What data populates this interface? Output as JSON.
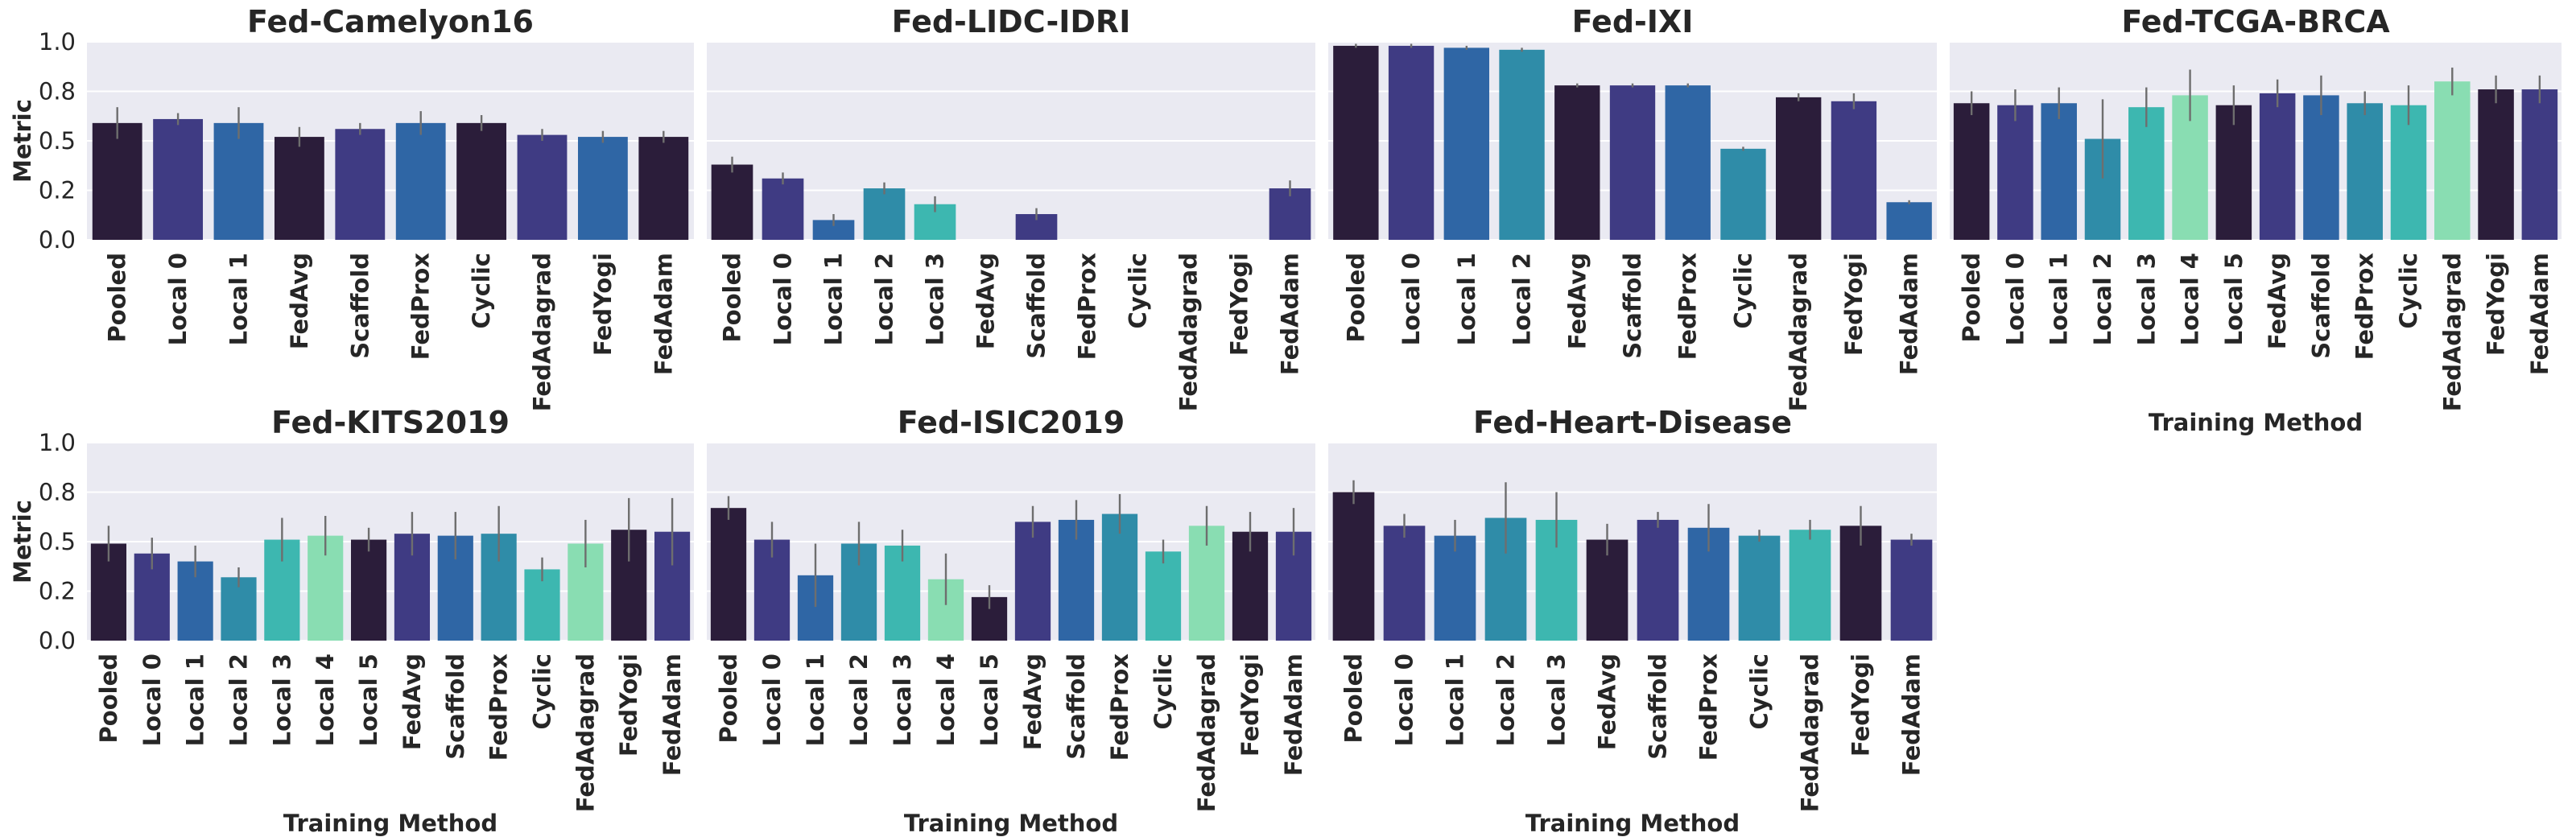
{
  "palette": [
    "#2b1d3a",
    "#3f3b83",
    "#2f66a5",
    "#2f8ca8",
    "#3db7b0",
    "#89ddb2"
  ],
  "chart_data": [
    {
      "type": "bar",
      "title": "Fed-Camelyon16",
      "xlabel": "",
      "ylabel": "Metric",
      "ylim": [
        0,
        1.0
      ],
      "yticks": [
        "0.0",
        "0.2",
        "0.5",
        "0.8",
        "1.0"
      ],
      "categories": [
        "Pooled",
        "Local 0",
        "Local 1",
        "FedAvg",
        "Scaffold",
        "FedProx",
        "Cyclic",
        "FedAdagrad",
        "FedYogi",
        "FedAdam"
      ],
      "values": [
        0.59,
        0.61,
        0.59,
        0.52,
        0.56,
        0.59,
        0.59,
        0.53,
        0.52,
        0.52
      ],
      "error": [
        0.08,
        0.03,
        0.08,
        0.05,
        0.03,
        0.06,
        0.04,
        0.03,
        0.03,
        0.03
      ],
      "color_index": [
        0,
        1,
        2,
        0,
        1,
        2,
        0,
        1,
        2,
        0
      ],
      "grid": true,
      "legend": "none"
    },
    {
      "type": "bar",
      "title": "Fed-LIDC-IDRI",
      "xlabel": "",
      "ylabel": "",
      "ylim": [
        0,
        1.0
      ],
      "yticks": [
        "0.0",
        "0.2",
        "0.5",
        "0.8",
        "1.0"
      ],
      "categories": [
        "Pooled",
        "Local 0",
        "Local 1",
        "Local 2",
        "Local 3",
        "FedAvg",
        "Scaffold",
        "FedProx",
        "Cyclic",
        "FedAdagrad",
        "FedYogi",
        "FedAdam"
      ],
      "values": [
        0.38,
        0.31,
        0.1,
        0.26,
        0.18,
        0.0,
        0.13,
        0.0,
        0.0,
        0.0,
        0.0,
        0.26
      ],
      "error": [
        0.04,
        0.03,
        0.03,
        0.03,
        0.04,
        0.0,
        0.03,
        0.0,
        0.0,
        0.0,
        0.0,
        0.04
      ],
      "color_index": [
        0,
        1,
        2,
        3,
        4,
        0,
        1,
        2,
        3,
        4,
        0,
        1
      ],
      "grid": true,
      "legend": "none"
    },
    {
      "type": "bar",
      "title": "Fed-IXI",
      "xlabel": "",
      "ylabel": "",
      "ylim": [
        0,
        1.0
      ],
      "yticks": [
        "0.0",
        "0.2",
        "0.5",
        "0.8",
        "1.0"
      ],
      "categories": [
        "Pooled",
        "Local 0",
        "Local 1",
        "Local 2",
        "FedAvg",
        "Scaffold",
        "FedProx",
        "Cyclic",
        "FedAdagrad",
        "FedYogi",
        "FedAdam"
      ],
      "values": [
        0.98,
        0.98,
        0.97,
        0.96,
        0.78,
        0.78,
        0.78,
        0.46,
        0.72,
        0.7,
        0.19
      ],
      "error": [
        0.01,
        0.01,
        0.01,
        0.01,
        0.01,
        0.01,
        0.01,
        0.01,
        0.02,
        0.04,
        0.01
      ],
      "color_index": [
        0,
        1,
        2,
        3,
        0,
        1,
        2,
        3,
        0,
        1,
        2
      ],
      "grid": true,
      "legend": "none"
    },
    {
      "type": "bar",
      "title": "Fed-TCGA-BRCA",
      "xlabel": "Training Method",
      "ylabel": "",
      "ylim": [
        0,
        1.0
      ],
      "yticks": [
        "0.0",
        "0.2",
        "0.5",
        "0.8",
        "1.0"
      ],
      "categories": [
        "Pooled",
        "Local 0",
        "Local 1",
        "Local 2",
        "Local 3",
        "Local 4",
        "Local 5",
        "FedAvg",
        "Scaffold",
        "FedProx",
        "Cyclic",
        "FedAdagrad",
        "FedYogi",
        "FedAdam"
      ],
      "values": [
        0.69,
        0.68,
        0.69,
        0.51,
        0.67,
        0.73,
        0.68,
        0.74,
        0.73,
        0.69,
        0.68,
        0.8,
        0.76,
        0.76
      ],
      "error": [
        0.06,
        0.08,
        0.08,
        0.2,
        0.1,
        0.13,
        0.1,
        0.07,
        0.1,
        0.06,
        0.1,
        0.07,
        0.07,
        0.07
      ],
      "color_index": [
        0,
        1,
        2,
        3,
        4,
        5,
        0,
        1,
        2,
        3,
        4,
        5,
        0,
        1
      ],
      "grid": true,
      "legend": "none"
    },
    {
      "type": "bar",
      "title": "Fed-KITS2019",
      "xlabel": "Training Method",
      "ylabel": "Metric",
      "ylim": [
        0,
        1.0
      ],
      "yticks": [
        "0.0",
        "0.2",
        "0.5",
        "0.8",
        "1.0"
      ],
      "categories": [
        "Pooled",
        "Local 0",
        "Local 1",
        "Local 2",
        "Local 3",
        "Local 4",
        "Local 5",
        "FedAvg",
        "Scaffold",
        "FedProx",
        "Cyclic",
        "FedAdagrad",
        "FedYogi",
        "FedAdam"
      ],
      "values": [
        0.49,
        0.44,
        0.4,
        0.32,
        0.51,
        0.53,
        0.51,
        0.54,
        0.53,
        0.54,
        0.36,
        0.49,
        0.56,
        0.55
      ],
      "error": [
        0.09,
        0.08,
        0.08,
        0.05,
        0.11,
        0.1,
        0.06,
        0.11,
        0.12,
        0.14,
        0.06,
        0.12,
        0.16,
        0.17
      ],
      "color_index": [
        0,
        1,
        2,
        3,
        4,
        5,
        0,
        1,
        2,
        3,
        4,
        5,
        0,
        1
      ],
      "grid": true,
      "legend": "none"
    },
    {
      "type": "bar",
      "title": "Fed-ISIC2019",
      "xlabel": "Training Method",
      "ylabel": "",
      "ylim": [
        0,
        1.0
      ],
      "yticks": [
        "0.0",
        "0.2",
        "0.5",
        "0.8",
        "1.0"
      ],
      "categories": [
        "Pooled",
        "Local 0",
        "Local 1",
        "Local 2",
        "Local 3",
        "Local 4",
        "Local 5",
        "FedAvg",
        "Scaffold",
        "FedProx",
        "Cyclic",
        "FedAdagrad",
        "FedYogi",
        "FedAdam"
      ],
      "values": [
        0.67,
        0.51,
        0.33,
        0.49,
        0.48,
        0.31,
        0.22,
        0.6,
        0.61,
        0.64,
        0.45,
        0.58,
        0.55,
        0.55
      ],
      "error": [
        0.06,
        0.09,
        0.16,
        0.11,
        0.08,
        0.13,
        0.06,
        0.08,
        0.1,
        0.1,
        0.06,
        0.1,
        0.1,
        0.12
      ],
      "color_index": [
        0,
        1,
        2,
        3,
        4,
        5,
        0,
        1,
        2,
        3,
        4,
        5,
        0,
        1
      ],
      "grid": true,
      "legend": "none"
    },
    {
      "type": "bar",
      "title": "Fed-Heart-Disease",
      "xlabel": "Training Method",
      "ylabel": "",
      "ylim": [
        0,
        1.0
      ],
      "yticks": [
        "0.0",
        "0.2",
        "0.5",
        "0.8",
        "1.0"
      ],
      "categories": [
        "Pooled",
        "Local 0",
        "Local 1",
        "Local 2",
        "Local 3",
        "FedAvg",
        "Scaffold",
        "FedProx",
        "Cyclic",
        "FedAdagrad",
        "FedYogi",
        "FedAdam"
      ],
      "values": [
        0.75,
        0.58,
        0.53,
        0.62,
        0.61,
        0.51,
        0.61,
        0.57,
        0.53,
        0.56,
        0.58,
        0.51
      ],
      "error": [
        0.06,
        0.06,
        0.08,
        0.18,
        0.14,
        0.08,
        0.04,
        0.12,
        0.03,
        0.05,
        0.1,
        0.03
      ],
      "color_index": [
        0,
        1,
        2,
        3,
        4,
        0,
        1,
        2,
        3,
        4,
        0,
        1
      ],
      "grid": true,
      "legend": "none"
    }
  ]
}
